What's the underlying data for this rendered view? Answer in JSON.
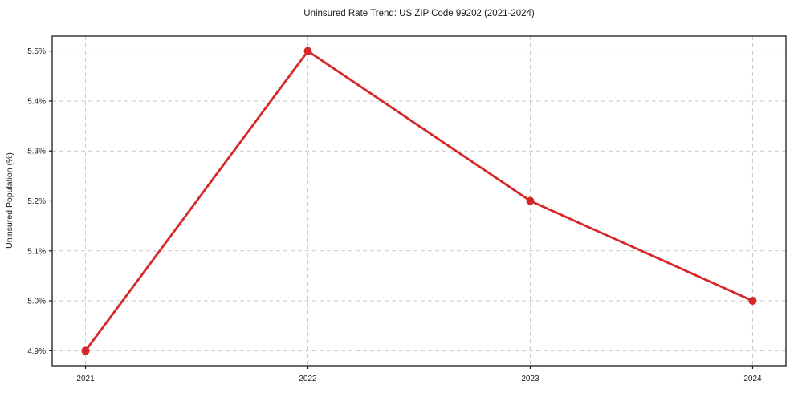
{
  "chart_data": {
    "type": "line",
    "title": "Uninsured Rate Trend: US ZIP Code 99202 (2021-2024)",
    "xlabel": "",
    "ylabel": "Uninsured Population (%)",
    "x": [
      2021,
      2022,
      2023,
      2024
    ],
    "values": [
      4.9,
      5.5,
      5.2,
      5.0
    ],
    "xticks": [
      2021,
      2022,
      2023,
      2024
    ],
    "xtick_labels": [
      "2021",
      "2022",
      "2023",
      "2024"
    ],
    "yticks": [
      4.9,
      5.0,
      5.1,
      5.2,
      5.3,
      5.4,
      5.5
    ],
    "ytick_labels": [
      "4.9%",
      "5.0%",
      "5.1%",
      "5.2%",
      "5.3%",
      "5.4%",
      "5.5%"
    ],
    "xlim": [
      2020.85,
      2024.15
    ],
    "ylim": [
      4.87,
      5.53
    ],
    "grid": true,
    "grid_style": "dashed",
    "legend": "none",
    "colors": {
      "line": "#d62728",
      "marker": "#d62728",
      "grid": "#c9c9c9",
      "spine": "#1a1a1a",
      "text": "#1a1a1a",
      "background": "#ffffff"
    }
  }
}
